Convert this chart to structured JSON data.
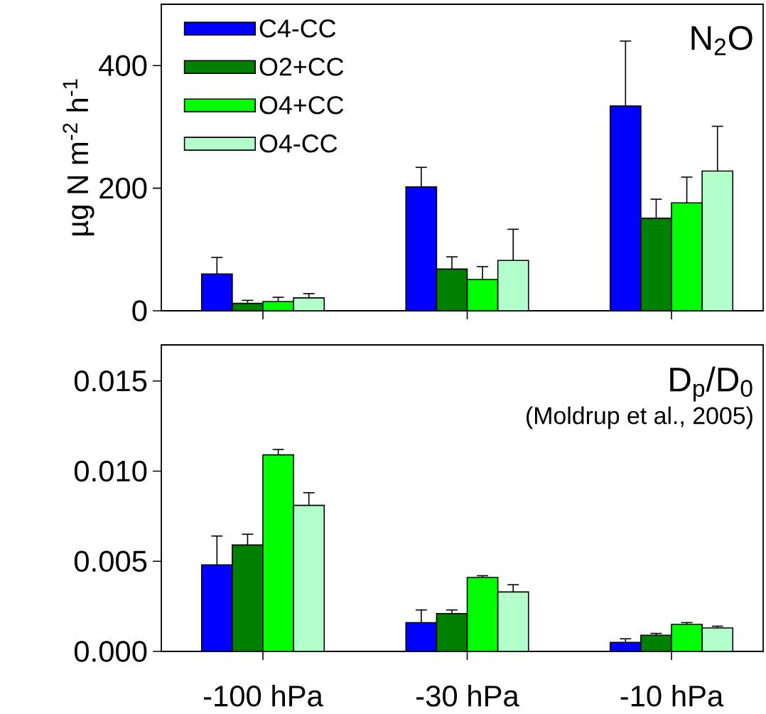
{
  "chart_data": [
    {
      "type": "bar",
      "ylabel": "µg N m$^{-2}$ h$^{-1}$",
      "annotations": [
        "N$_{2}$O"
      ],
      "categories": [
        null,
        null,
        null
      ],
      "ylim": [
        0,
        500
      ],
      "yticks": [
        0,
        200,
        400
      ],
      "legend": "top left",
      "series": [
        {
          "name": "C4-CC",
          "color": "#0000ff",
          "values": [
            60,
            202,
            334
          ],
          "errors": [
            27,
            32,
            106
          ]
        },
        {
          "name": "O2+CC",
          "color": "#008000",
          "values": [
            12,
            68,
            151
          ],
          "errors": [
            5,
            20,
            31
          ]
        },
        {
          "name": "O4+CC",
          "color": "#00ff00",
          "values": [
            15,
            51,
            176
          ],
          "errors": [
            7,
            21,
            42
          ]
        },
        {
          "name": "O4-CC",
          "color": "#b3ffcc",
          "values": [
            21,
            82,
            228
          ],
          "errors": [
            7,
            51,
            73
          ]
        }
      ]
    },
    {
      "type": "bar",
      "annotations": [
        "D$_{p}$/D$_{0}$",
        "(Moldrup et al., 2005)"
      ],
      "categories": [
        "-100 hPa",
        "-30 hPa",
        "-10 hPa"
      ],
      "ylim": [
        0,
        0.017
      ],
      "yticks": [
        {
          "value": 0,
          "label": "0.000"
        },
        {
          "value": 0.005,
          "label": "0.005"
        },
        {
          "value": 0.01,
          "label": "0.010"
        },
        {
          "value": 0.015,
          "label": "0.015"
        }
      ],
      "series": [
        {
          "color": "#0000ff",
          "values": [
            0.0048,
            0.0016,
            0.0005
          ],
          "errors": [
            0.0016,
            0.0007,
            0.0002
          ]
        },
        {
          "color": "#008000",
          "values": [
            0.0059,
            0.0021,
            0.0009
          ],
          "errors": [
            0.0006,
            0.0002,
            0.0001
          ]
        },
        {
          "color": "#00ff00",
          "values": [
            0.0109,
            0.0041,
            0.0015
          ],
          "errors": [
            0.0003,
            0.0001,
            0.0001
          ]
        },
        {
          "color": "#b3ffcc",
          "values": [
            0.0081,
            0.0033,
            0.0013
          ],
          "errors": [
            0.0007,
            0.0004,
            0.0001
          ]
        }
      ]
    }
  ]
}
